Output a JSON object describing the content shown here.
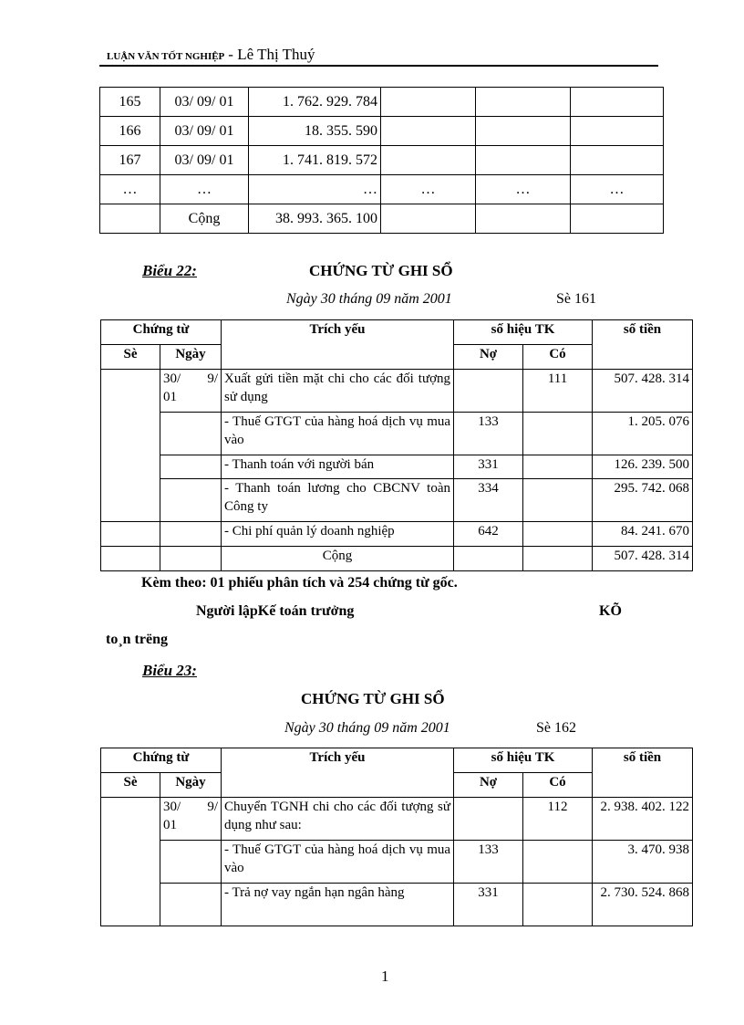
{
  "header": {
    "thesis": "LUẬN VĂN TỐT NGHIỆP",
    "author": "- Lê Thị Thuý"
  },
  "table1": {
    "rows": [
      [
        "165",
        "03/ 09/ 01",
        "1. 762. 929. 784",
        "",
        "",
        ""
      ],
      [
        "166",
        "03/ 09/ 01",
        "18. 355. 590",
        "",
        "",
        ""
      ],
      [
        "167",
        "03/ 09/ 01",
        "1. 741. 819. 572",
        "",
        "",
        ""
      ],
      [
        "…",
        "…",
        "…",
        "…",
        "…",
        "…"
      ],
      [
        "",
        "Cộng",
        "38. 993. 365. 100",
        "",
        "",
        ""
      ]
    ]
  },
  "form22": {
    "label": "Biểu 22:",
    "title": "CHỨNG TỪ GHI SỔ",
    "date": "Ngày 30 tháng 09 năm 2001",
    "number": "Sè 161",
    "headers": {
      "chung_tu": "Chứng từ",
      "se": "Sè",
      "ngay": "Ngày",
      "trich_yeu": "Trích yếu",
      "so_hieu_tk": "số hiệu TK",
      "no": "Nợ",
      "co": "Có",
      "so_tien": "số tiền"
    },
    "rows": [
      {
        "ngay": "30/ 9/ 01",
        "desc": "Xuất gửi tiền mặt chi cho các đối tượng sử dụng",
        "no": "",
        "co": "111",
        "amount": "507. 428. 314"
      },
      {
        "ngay": "",
        "desc": "- Thuế GTGT của hàng hoá dịch vụ mua vào",
        "no": "133",
        "co": "",
        "amount": "1. 205. 076"
      },
      {
        "ngay": "",
        "desc": "- Thanh toán với người bán",
        "no": "331",
        "co": "",
        "amount": "126. 239. 500"
      },
      {
        "ngay": "",
        "desc": "- Thanh toán lương cho CBCNV toàn Công ty",
        "no": "334",
        "co": "",
        "amount": "295. 742. 068"
      },
      {
        "ngay": "",
        "desc": "- Chi phí quản lý doanh nghiệp",
        "no": "642",
        "co": "",
        "amount": "84. 241. 670"
      }
    ],
    "total_label": "Cộng",
    "total": "507. 428. 314",
    "attached": "Kèm theo: 01 phiếu phân tích và 254 chứng từ gốc.",
    "signers": "Người lậpKế toán trưởng",
    "signer3a": "KÕ",
    "signer3b": "to¸n tr­ëng"
  },
  "form23": {
    "label": "Biểu 23:",
    "title": "CHỨNG TỪ GHI SỔ",
    "date": "Ngày 30 tháng 09 năm 2001",
    "number": "Sè 162",
    "headers": {
      "chung_tu": "Chứng từ",
      "se": "Sè",
      "ngay": "Ngày",
      "trich_yeu": "Trích yếu",
      "so_hieu_tk": "số hiệu TK",
      "no": "Nợ",
      "co": "Có",
      "so_tien": "số tiền"
    },
    "rows": [
      {
        "ngay": "30/ 9/ 01",
        "desc": "Chuyển TGNH chi cho các đối tượng sử dụng như sau:",
        "no": "",
        "co": "112",
        "amount": "2. 938. 402. 122"
      },
      {
        "ngay": "",
        "desc": "- Thuế GTGT của hàng hoá dịch vụ mua vào",
        "no": "133",
        "co": "",
        "amount": "3. 470. 938"
      },
      {
        "ngay": "",
        "desc": "- Trả nợ vay ngắn hạn ngân hàng",
        "no": "331",
        "co": "",
        "amount": "2. 730. 524. 868"
      }
    ]
  },
  "footer": {
    "page": "1"
  }
}
